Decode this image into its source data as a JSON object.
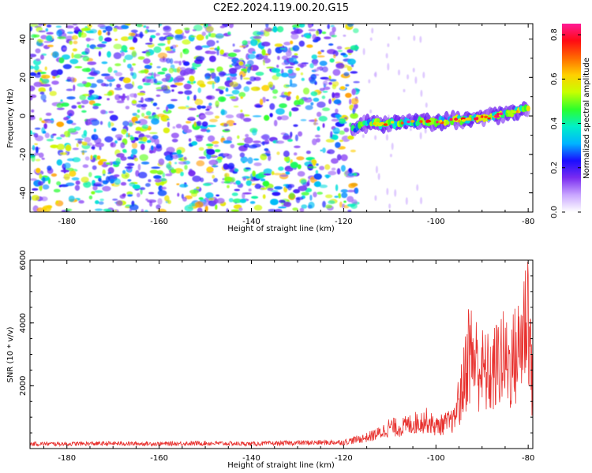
{
  "title": "C2E2.2024.119.00.20.G15",
  "colors": {
    "snr_line": "#e8322f",
    "axis": "#000000",
    "speckle_dark": "#5a12e6",
    "speckle_light": "#d7c2fa"
  },
  "chart_data": [
    {
      "type": "heatmap",
      "title": "C2E2.2024.119.00.20.G15",
      "xlabel": "Height of straight line (km)",
      "ylabel": "Frequency (Hz)",
      "xlim": [
        -188,
        -79
      ],
      "ylim": [
        -50,
        48
      ],
      "xticks": [
        -180,
        -160,
        -140,
        -120,
        -100,
        -80
      ],
      "yticks": [
        -40,
        -20,
        0,
        20,
        40
      ],
      "xtick_labels": [
        "-180",
        "-160",
        "-140",
        "-120",
        "-100",
        "-80"
      ],
      "ytick_labels": [
        "-40",
        "-20",
        "0",
        "20",
        "40"
      ],
      "colorbar": {
        "label": "Normalized spectral amplitude",
        "range": [
          0,
          0.85
        ],
        "ticks": [
          0,
          0.2,
          0.4,
          0.6,
          0.8
        ],
        "tick_labels": [
          "0.0",
          "0.2",
          "0.4",
          "0.6",
          "0.8"
        ],
        "colormap": [
          "#ffffff",
          "#c9a6ff",
          "#7a2cf0",
          "#1a0dff",
          "#00b4ff",
          "#00f0c8",
          "#2cff2c",
          "#c8ff00",
          "#ffd000",
          "#ff6a00",
          "#ff0a14",
          "#ff1a96"
        ]
      },
      "signal_track": {
        "x": [
          -118,
          -115,
          -110,
          -105,
          -100,
          -95,
          -90,
          -85,
          -80
        ],
        "y": [
          -7,
          -4,
          -4,
          -3,
          -3,
          -2,
          -1,
          1,
          4
        ],
        "peak_amplitude": 0.85
      },
      "noise_region_x": [
        -188,
        -117
      ],
      "noise_amplitude_range": [
        0.05,
        0.3
      ]
    },
    {
      "type": "line",
      "title": "",
      "xlabel": "Height of straight line (km)",
      "ylabel": "SNR (10 * v/v)",
      "xlim": [
        -188,
        -79
      ],
      "ylim": [
        0,
        6000
      ],
      "xticks": [
        -180,
        -160,
        -140,
        -120,
        -100,
        -80
      ],
      "yticks": [
        2000,
        4000,
        6000
      ],
      "xtick_labels": [
        "-180",
        "-160",
        "-140",
        "-120",
        "-100",
        "-80"
      ],
      "ytick_labels": [
        "2000",
        "4000",
        "6000"
      ],
      "series": [
        {
          "x": [
            -188,
            -180,
            -170,
            -160,
            -150,
            -140,
            -130,
            -120,
            -115,
            -112,
            -110,
            -108,
            -105,
            -102,
            -100,
            -98,
            -96,
            -94,
            -93,
            -90,
            -88,
            -86,
            -84,
            -82,
            -80,
            -79
          ],
          "y": [
            150,
            150,
            160,
            150,
            170,
            150,
            180,
            200,
            350,
            500,
            700,
            650,
            800,
            900,
            700,
            800,
            900,
            2500,
            3800,
            3000,
            2800,
            3500,
            3200,
            3800,
            5500,
            2000
          ]
        }
      ]
    }
  ]
}
